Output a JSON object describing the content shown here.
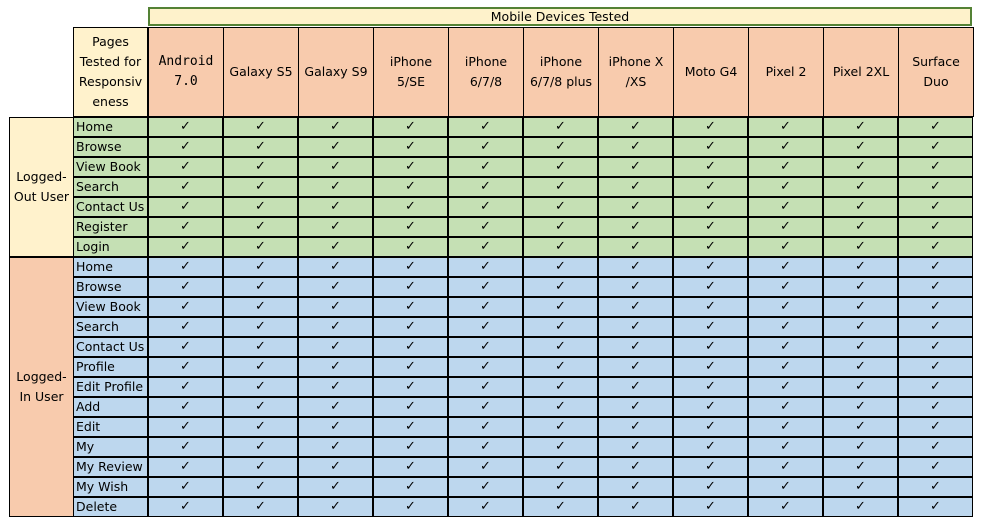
{
  "banner": "Mobile Devices Tested",
  "corner_label": "Pages\nTested for\nResponsiv\neness",
  "check": "✓",
  "devices": [
    {
      "label": "Android\n7.0",
      "mono": true
    },
    {
      "label": "Galaxy S5",
      "mono": false
    },
    {
      "label": "Galaxy S9",
      "mono": false
    },
    {
      "label": "iPhone\n5/SE",
      "mono": false
    },
    {
      "label": "iPhone\n6/7/8",
      "mono": false
    },
    {
      "label": "iPhone\n6/7/8 plus",
      "mono": false
    },
    {
      "label": "iPhone X\n/XS",
      "mono": false
    },
    {
      "label": "Moto G4",
      "mono": false
    },
    {
      "label": "Pixel 2",
      "mono": false
    },
    {
      "label": "Pixel 2XL",
      "mono": false
    },
    {
      "label": "Surface\nDuo",
      "mono": false
    }
  ],
  "groups": [
    {
      "id": "out",
      "label": "Logged-\nOut User",
      "pages": [
        "Home",
        "Browse",
        "View Book",
        "Search",
        "Contact Us",
        "Register",
        "Login"
      ]
    },
    {
      "id": "in",
      "label": "Logged-\nIn User",
      "pages": [
        "Home",
        "Browse",
        "View Book",
        "Search",
        "Contact Us",
        "Profile",
        "Edit Profile",
        "Add",
        "Edit",
        "My",
        "My Review",
        "My Wish",
        "Delete"
      ]
    }
  ]
}
